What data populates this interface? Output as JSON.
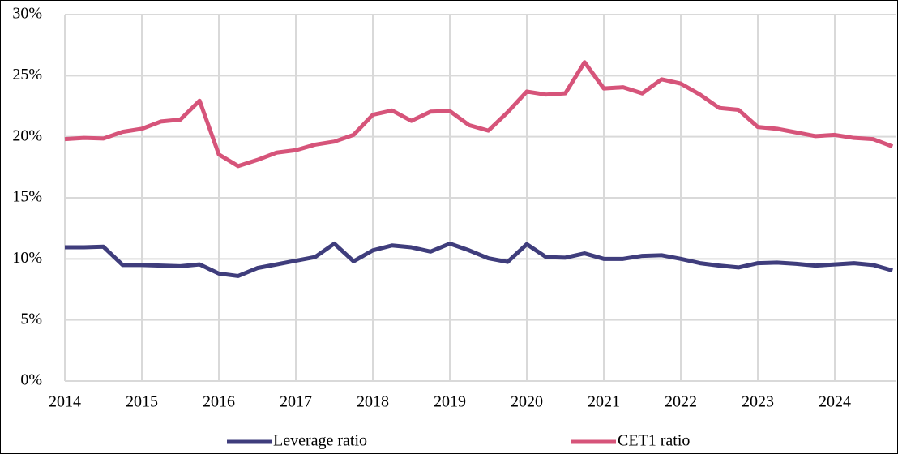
{
  "chart_data": {
    "type": "line",
    "x": [
      2014,
      2014.25,
      2014.5,
      2014.75,
      2015,
      2015.25,
      2015.5,
      2015.75,
      2016,
      2016.25,
      2016.5,
      2016.75,
      2017,
      2017.25,
      2017.5,
      2017.75,
      2018,
      2018.25,
      2018.5,
      2018.75,
      2019,
      2019.25,
      2019.5,
      2019.75,
      2020,
      2020.25,
      2020.5,
      2020.75,
      2021,
      2021.25,
      2021.5,
      2021.75,
      2022,
      2022.25,
      2022.5,
      2022.75,
      2023,
      2023.25,
      2023.5,
      2023.75,
      2024,
      2024.25,
      2024.5,
      2024.75
    ],
    "series": [
      {
        "name": "Leverage ratio",
        "color": "#3f3d7c",
        "values": [
          10.95,
          10.95,
          11.0,
          9.5,
          9.5,
          9.45,
          9.4,
          9.55,
          8.8,
          8.6,
          9.25,
          9.55,
          9.85,
          10.15,
          11.25,
          9.8,
          10.7,
          11.1,
          10.95,
          10.6,
          11.25,
          10.7,
          10.05,
          9.75,
          11.2,
          10.15,
          10.1,
          10.45,
          10.0,
          10.0,
          10.25,
          10.3,
          10.0,
          9.65,
          9.45,
          9.3,
          9.65,
          9.7,
          9.6,
          9.45,
          9.55,
          9.65,
          9.5,
          9.05
        ]
      },
      {
        "name": "CET1 ratio",
        "color": "#d6547a",
        "values": [
          19.8,
          19.9,
          19.85,
          20.4,
          20.65,
          21.25,
          21.4,
          22.95,
          18.55,
          17.6,
          18.1,
          18.7,
          18.9,
          19.35,
          19.6,
          20.15,
          21.8,
          22.15,
          21.3,
          22.05,
          22.1,
          20.95,
          20.5,
          22.0,
          23.7,
          23.45,
          23.55,
          26.1,
          23.95,
          24.05,
          23.55,
          24.7,
          24.35,
          23.45,
          22.35,
          22.2,
          20.8,
          20.65,
          20.35,
          20.05,
          20.15,
          19.9,
          19.8,
          19.2
        ]
      }
    ],
    "xlim": [
      2014,
      2024.8
    ],
    "xticks": [
      2014,
      2015,
      2016,
      2017,
      2018,
      2019,
      2020,
      2021,
      2022,
      2023,
      2024
    ],
    "ylim": [
      0,
      30
    ],
    "yticks": [
      {
        "value": 0,
        "label": "0%"
      },
      {
        "value": 5,
        "label": "5%"
      },
      {
        "value": 10,
        "label": "10%"
      },
      {
        "value": 15,
        "label": "15%"
      },
      {
        "value": 20,
        "label": "20%"
      },
      {
        "value": 25,
        "label": "25%"
      },
      {
        "value": 30,
        "label": "30%"
      }
    ],
    "grid": true,
    "legend": "bottom"
  }
}
